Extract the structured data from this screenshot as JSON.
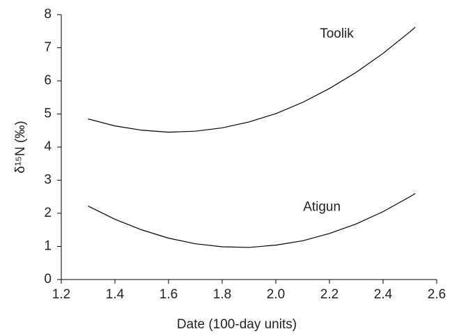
{
  "chart_data": {
    "type": "line",
    "x_label": "Date (100-day units)",
    "y_label": "δ¹⁵N (‰)",
    "x": [
      1.3,
      1.4,
      1.5,
      1.6,
      1.7,
      1.8,
      1.9,
      2.0,
      2.1,
      2.2,
      2.3,
      2.4,
      2.5,
      2.52
    ],
    "series": [
      {
        "name": "Toolik",
        "color": "#000000",
        "values": [
          4.85,
          4.64,
          4.51,
          4.45,
          4.48,
          4.58,
          4.76,
          5.01,
          5.35,
          5.77,
          6.26,
          6.83,
          7.48,
          7.62
        ]
      },
      {
        "name": "Atigun",
        "color": "#000000",
        "values": [
          2.22,
          1.82,
          1.5,
          1.25,
          1.08,
          0.99,
          0.97,
          1.04,
          1.17,
          1.39,
          1.68,
          2.05,
          2.5,
          2.6
        ]
      }
    ],
    "xlim": [
      1.2,
      2.6
    ],
    "xticks": [
      1.2,
      1.4,
      1.6,
      1.8,
      {
        "value": 2,
        "label": "2.0"
      },
      2.2,
      2.4,
      2.6
    ],
    "ylim": [
      0,
      8
    ],
    "yticks": [
      0,
      1,
      2,
      3,
      4,
      5,
      6,
      7,
      8
    ],
    "grid": false
  }
}
